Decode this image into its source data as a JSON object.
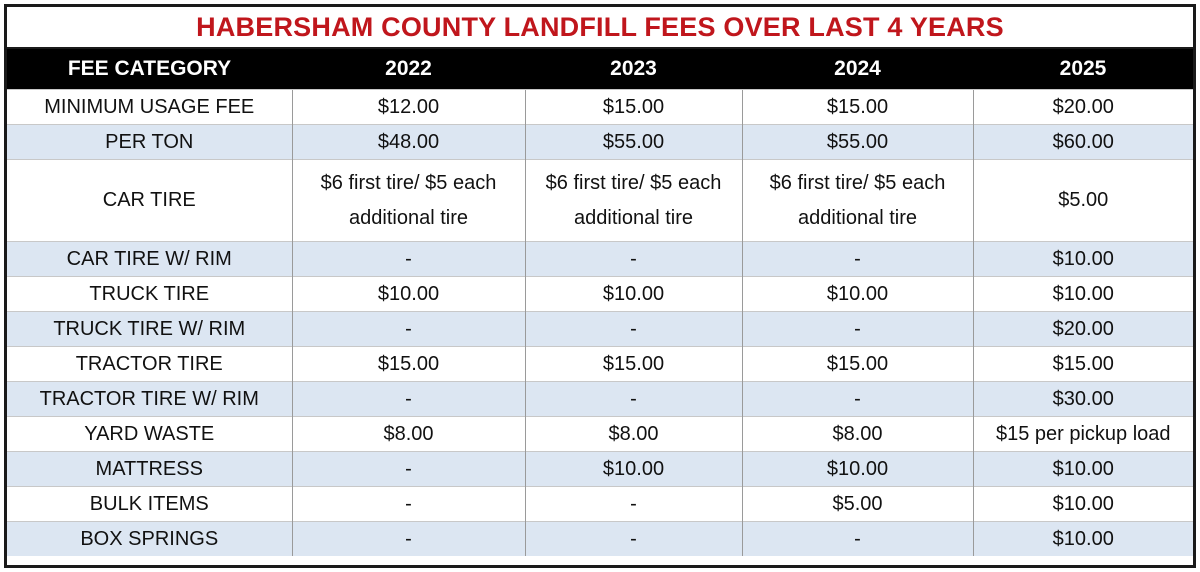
{
  "title": "HABERSHAM COUNTY LANDFILL FEES OVER LAST 4 YEARS",
  "headers": [
    "FEE CATEGORY",
    "2022",
    "2023",
    "2024",
    "2025"
  ],
  "rows": [
    [
      "MINIMUM USAGE FEE",
      "$12.00",
      "$15.00",
      "$15.00",
      "$20.00"
    ],
    [
      "PER TON",
      "$48.00",
      "$55.00",
      "$55.00",
      "$60.00"
    ],
    [
      "CAR TIRE",
      "$6 first tire/  $5 each additional tire",
      "$6 first tire/ $5 each additional tire",
      "$6 first tire/ $5 each additional tire",
      "$5.00"
    ],
    [
      "CAR TIRE W/ RIM",
      "-",
      "-",
      "-",
      "$10.00"
    ],
    [
      "TRUCK TIRE",
      "$10.00",
      "$10.00",
      "$10.00",
      "$10.00"
    ],
    [
      "TRUCK TIRE W/ RIM",
      "-",
      "-",
      "-",
      "$20.00"
    ],
    [
      "TRACTOR TIRE",
      "$15.00",
      "$15.00",
      "$15.00",
      "$15.00"
    ],
    [
      "TRACTOR TIRE W/ RIM",
      "-",
      "-",
      "-",
      "$30.00"
    ],
    [
      "YARD WASTE",
      "$8.00",
      "$8.00",
      "$8.00",
      "$15 per pickup load"
    ],
    [
      "MATTRESS",
      "-",
      "$10.00",
      "$10.00",
      "$10.00"
    ],
    [
      "BULK ITEMS",
      "-",
      "-",
      "$5.00",
      "$10.00"
    ],
    [
      "BOX SPRINGS",
      "-",
      "-",
      "-",
      "$10.00"
    ]
  ],
  "colors": {
    "title": "#c0161c",
    "header_bg": "#000000",
    "header_text": "#ffffff",
    "row_shade": "#dce6f2",
    "row_plain": "#ffffff"
  }
}
